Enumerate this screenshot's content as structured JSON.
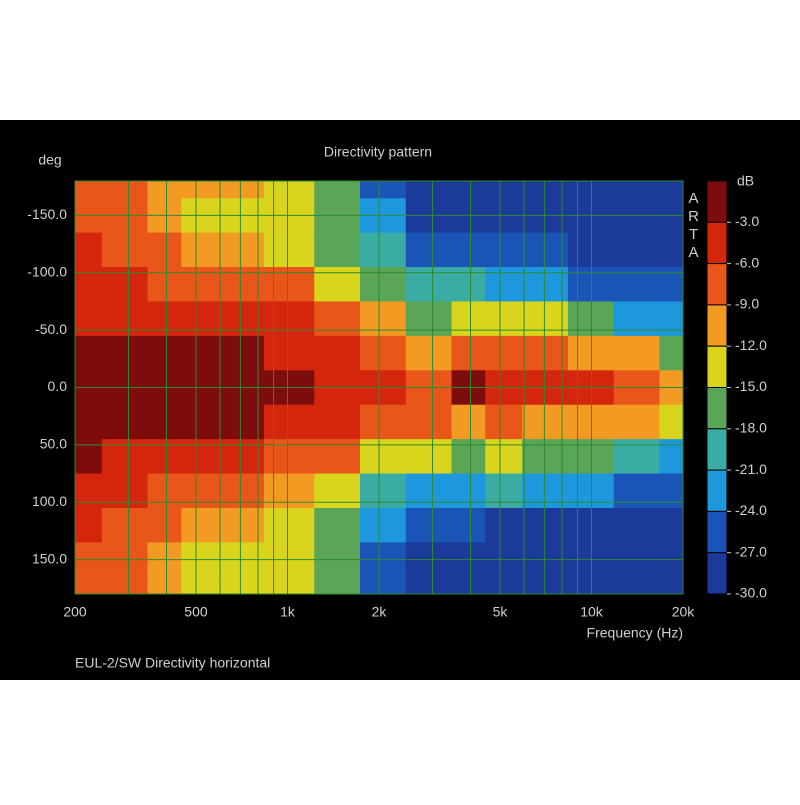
{
  "chart_data": {
    "type": "heatmap",
    "title": "Directivity pattern",
    "y_label": "deg",
    "x_label": "Frequency (Hz)",
    "colorbar_label": "dB",
    "watermark": "ARTA",
    "footer": "EUL-2/SW  Directivity horizontal",
    "log_x": true,
    "grid": true,
    "grid_color": "#2f8a2f",
    "xlim": [
      200,
      20000
    ],
    "xticks": [
      200,
      500,
      {
        "value": 1000,
        "label": "1k"
      },
      {
        "value": 2000,
        "label": "2k"
      },
      {
        "value": 5000,
        "label": "5k"
      },
      {
        "value": 10000,
        "label": "10k"
      },
      {
        "value": 20000,
        "label": "20k"
      }
    ],
    "x_minor_ticks": [
      300,
      400,
      600,
      700,
      800,
      900,
      3000,
      4000,
      6000,
      7000,
      8000,
      9000
    ],
    "ylim": [
      -180,
      180
    ],
    "yticks": [
      {
        "value": -150,
        "label": "-150.0"
      },
      {
        "value": -100,
        "label": "-100.0"
      },
      {
        "value": -50,
        "label": "-50.0"
      },
      {
        "value": 0,
        "label": "0.0"
      },
      {
        "value": 50,
        "label": "50.0"
      },
      {
        "value": 100,
        "label": "100.0"
      },
      {
        "value": 150,
        "label": "150.0"
      }
    ],
    "zlim": [
      -30,
      0
    ],
    "zticks": [
      {
        "value": -3,
        "label": "-3.0"
      },
      {
        "value": -6,
        "label": "-6.0"
      },
      {
        "value": -9,
        "label": "-9.0"
      },
      {
        "value": -12,
        "label": "-12.0"
      },
      {
        "value": -15,
        "label": "-15.0"
      },
      {
        "value": -18,
        "label": "-18.0"
      },
      {
        "value": -21,
        "label": "-21.0"
      },
      {
        "value": -24,
        "label": "-24.0"
      },
      {
        "value": -27,
        "label": "-27.0"
      },
      {
        "value": -30,
        "label": "-30.0"
      }
    ],
    "colors": [
      "#7d0c0c",
      "#d3260c",
      "#e8561a",
      "#f39a22",
      "#d9d51c",
      "#5aa556",
      "#3aaca4",
      "#1d98dc",
      "#1a54b6",
      "#1c3a9a"
    ],
    "x": [
      200,
      300,
      400,
      500,
      700,
      1000,
      1500,
      2000,
      3000,
      4000,
      5000,
      7000,
      10000,
      14000,
      20000
    ],
    "y": [
      -180,
      -150,
      -120,
      -90,
      -60,
      -30,
      0,
      30,
      60,
      90,
      120,
      150,
      180
    ],
    "z": [
      [
        -6,
        -6,
        -5,
        -5,
        -3,
        -2,
        -2,
        -2,
        -2,
        -4,
        -5,
        -6,
        -6
      ],
      [
        -7,
        -7,
        -6,
        -5,
        -3,
        -1,
        -1,
        -1,
        -3,
        -5,
        -6,
        -7,
        -7
      ],
      [
        -9,
        -10,
        -8,
        -6,
        -4,
        -2,
        -1,
        -2,
        -4,
        -6,
        -8,
        -10,
        -10
      ],
      [
        -10,
        -12,
        -9,
        -6,
        -4,
        -2,
        -1,
        -2,
        -4,
        -7,
        -9,
        -12,
        -12
      ],
      [
        -11,
        -13,
        -10,
        -7,
        -4,
        -2,
        -1,
        -2,
        -5,
        -8,
        -11,
        -13,
        -12
      ],
      [
        -13,
        -14,
        -12,
        -8,
        -5,
        -3,
        -2,
        -3,
        -6,
        -10,
        -13,
        -14,
        -14
      ],
      [
        -16,
        -17,
        -15,
        -12,
        -7,
        -4,
        -3,
        -4,
        -8,
        -13,
        -16,
        -17,
        -17
      ],
      [
        -24,
        -22,
        -19,
        -15,
        -10,
        -6,
        -5,
        -6,
        -12,
        -19,
        -23,
        -24,
        -24
      ],
      [
        -27,
        -27,
        -24,
        -20,
        -15,
        -9,
        -6,
        -8,
        -14,
        -22,
        -26,
        -27,
        -27
      ],
      [
        -28,
        -28,
        -25,
        -19,
        -14,
        -8,
        -2,
        -9,
        -16,
        -21,
        -26,
        -28,
        -28
      ],
      [
        -28,
        -28,
        -26,
        -21,
        -13,
        -7,
        -4,
        -8,
        -13,
        -20,
        -27,
        -28,
        -28
      ],
      [
        -28,
        -28,
        -26,
        -22,
        -14,
        -8,
        -4,
        -9,
        -15,
        -21,
        -27,
        -28,
        -28
      ],
      [
        -28,
        -28,
        -27,
        -24,
        -17,
        -9,
        -5,
        -9,
        -16,
        -22,
        -27,
        -28,
        -28
      ],
      [
        -28,
        -28,
        -28,
        -25,
        -21,
        -11,
        -7,
        -11,
        -18,
        -24,
        -28,
        -28,
        -28
      ],
      [
        -28,
        -28,
        -28,
        -26,
        -23,
        -15,
        -10,
        -14,
        -21,
        -25,
        -28,
        -28,
        -28
      ]
    ]
  }
}
